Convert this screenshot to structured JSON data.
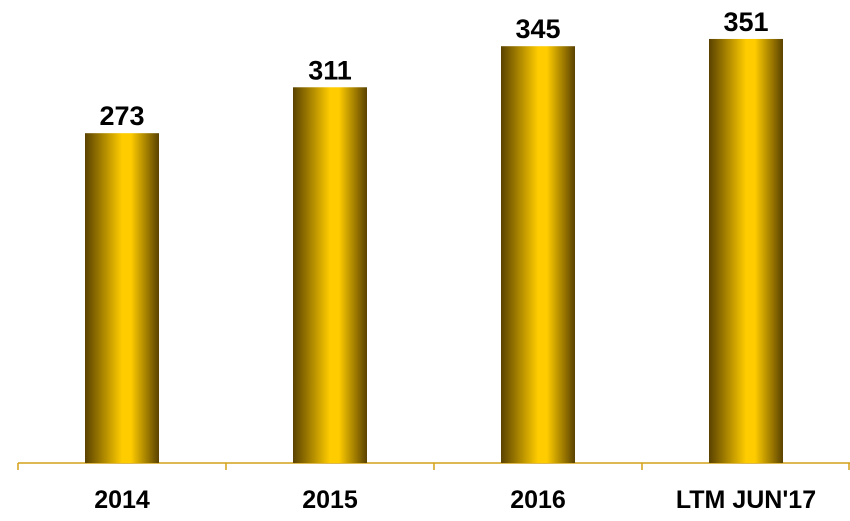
{
  "chart_data": {
    "type": "bar",
    "categories": [
      "2014",
      "2015",
      "2016",
      "LTM JUN'17"
    ],
    "values": [
      273,
      311,
      345,
      351
    ],
    "color": "#ffcc00",
    "ylim": [
      0,
      370
    ]
  }
}
